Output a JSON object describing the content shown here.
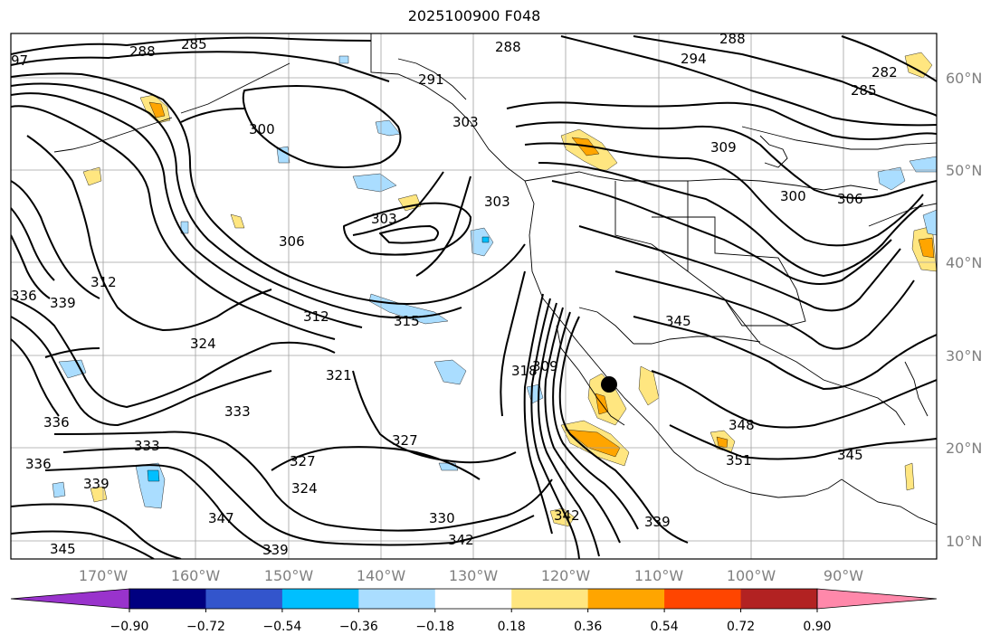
{
  "title": "2025100900 F048",
  "lat_labels": [
    "60°N",
    "50°N",
    "40°N",
    "30°N",
    "20°N",
    "10°N"
  ],
  "lon_labels": [
    "170°W",
    "160°W",
    "150°W",
    "140°W",
    "130°W",
    "120°W",
    "110°W",
    "100°W",
    "90°W"
  ],
  "colorbar": {
    "colors": [
      "#9933cc",
      "#000080",
      "#3355cc",
      "#00bfff",
      "#aaddff",
      "#ffffff",
      "#ffe680",
      "#ffa500",
      "#ff4500",
      "#b22222",
      "#ff88aa"
    ],
    "ticks": [
      "−0.90",
      "−0.72",
      "−0.54",
      "−0.36",
      "−0.18",
      "0.18",
      "0.36",
      "0.54",
      "0.72",
      "0.90"
    ]
  },
  "contour_labels": [
    {
      "text": "288"
    },
    {
      "text": "285"
    },
    {
      "text": "97"
    },
    {
      "text": "288"
    },
    {
      "text": "288"
    },
    {
      "text": "294"
    },
    {
      "text": "282"
    },
    {
      "text": "285"
    },
    {
      "text": "291"
    },
    {
      "text": "300"
    },
    {
      "text": "303"
    },
    {
      "text": "309"
    },
    {
      "text": "300"
    },
    {
      "text": "306"
    },
    {
      "text": "303"
    },
    {
      "text": "303"
    },
    {
      "text": "306"
    },
    {
      "text": "312"
    },
    {
      "text": "336"
    },
    {
      "text": "339"
    },
    {
      "text": "312"
    },
    {
      "text": "315"
    },
    {
      "text": "324"
    },
    {
      "text": "345"
    },
    {
      "text": "321"
    },
    {
      "text": "318"
    },
    {
      "text": "309"
    },
    {
      "text": "333"
    },
    {
      "text": "336"
    },
    {
      "text": "333"
    },
    {
      "text": "327"
    },
    {
      "text": "327"
    },
    {
      "text": "348"
    },
    {
      "text": "351"
    },
    {
      "text": "345"
    },
    {
      "text": "336"
    },
    {
      "text": "324"
    },
    {
      "text": "339"
    },
    {
      "text": "347"
    },
    {
      "text": "330"
    },
    {
      "text": "342"
    },
    {
      "text": "339"
    },
    {
      "text": "342"
    },
    {
      "text": "339"
    },
    {
      "text": "345"
    }
  ]
}
